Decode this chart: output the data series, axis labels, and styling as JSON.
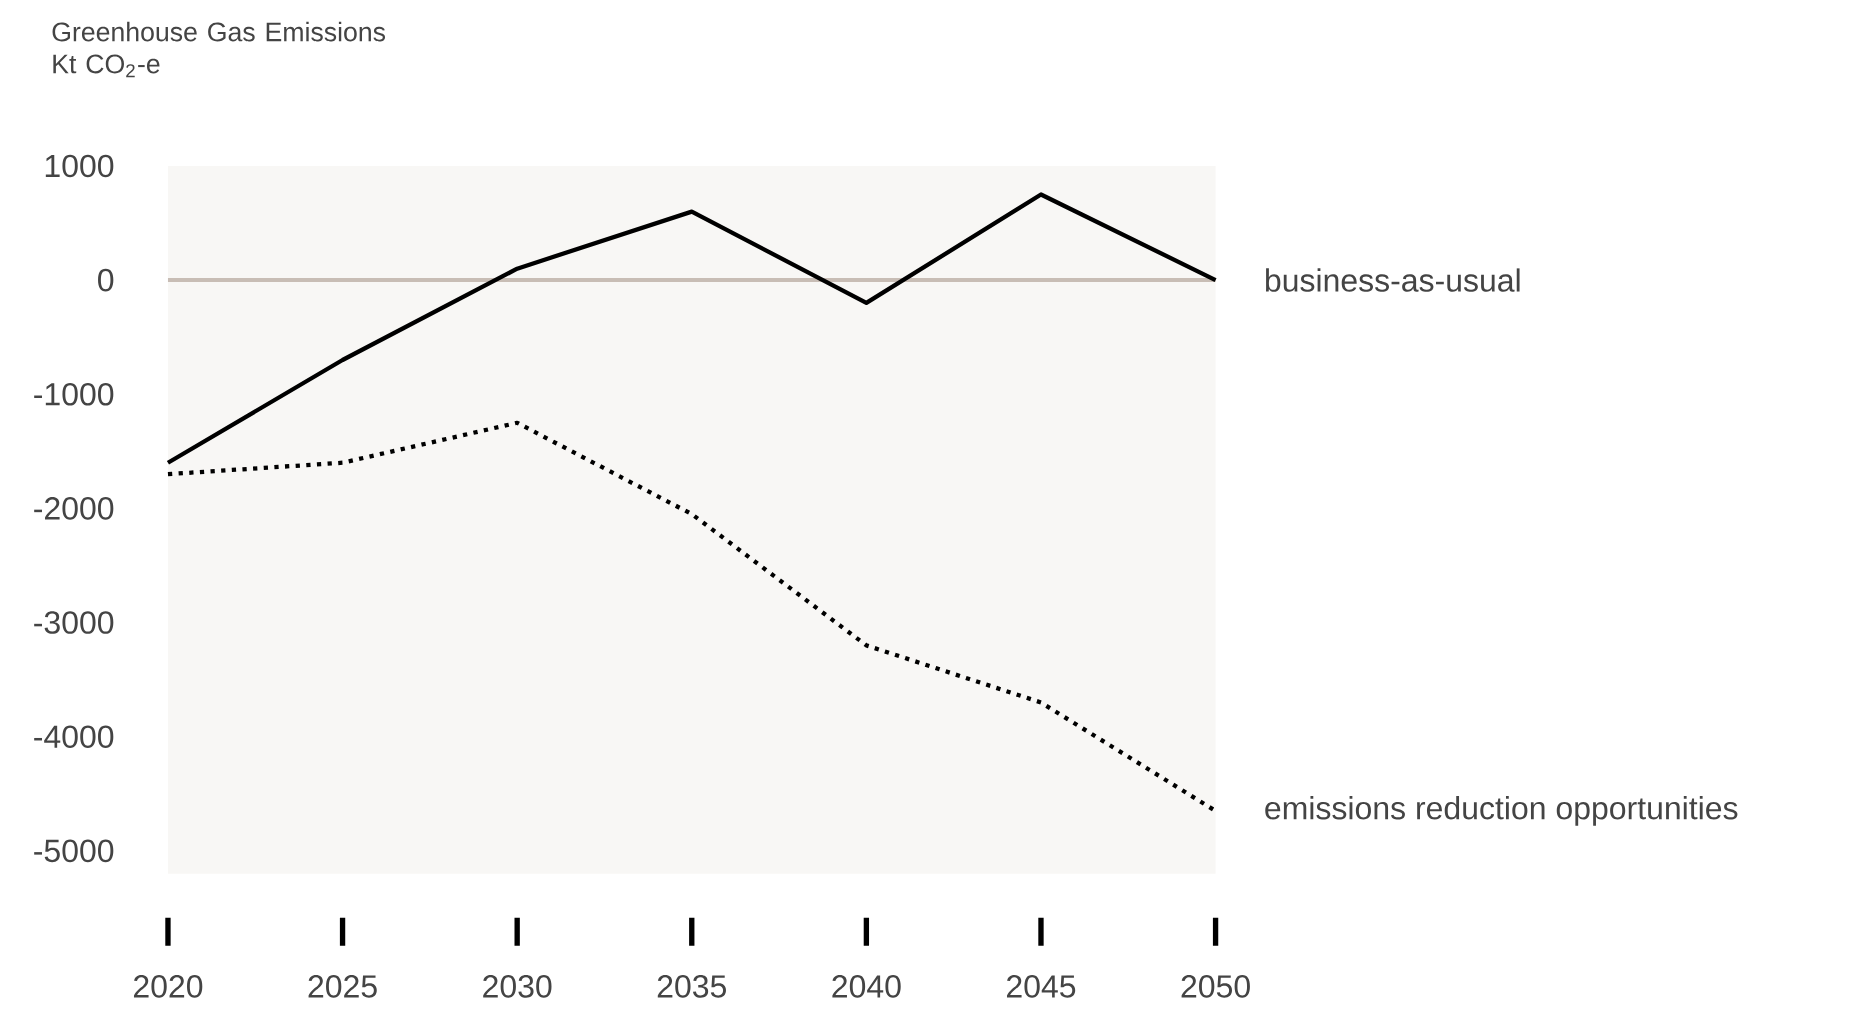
{
  "chart_data": {
    "type": "line",
    "ylabel": "Greenhouse Gas Emissions Kt CO$_{2}$-e",
    "x": [
      2020,
      2025,
      2030,
      2035,
      2040,
      2045,
      2050
    ],
    "series": [
      {
        "name": "business-as-usual",
        "color": "#000000",
        "line_style": "solid",
        "values": [
          -1600,
          -700,
          100,
          600,
          -200,
          750,
          0
        ]
      },
      {
        "name": "emissions reduction opportunities",
        "color": "#000000",
        "line_style": "dotted",
        "values": [
          -1700,
          -1600,
          -1250,
          -2050,
          -3200,
          -3700,
          -4650
        ]
      }
    ],
    "xlim": [
      2020,
      2050
    ],
    "ylim": [
      -5200,
      1000
    ],
    "xticks": [
      2020,
      2025,
      2030,
      2035,
      2040,
      2045,
      2050
    ],
    "yticks": [
      -5000,
      -4000,
      -3000,
      -2000,
      -1000,
      0,
      1000
    ],
    "ref_lines": [
      {
        "axis": "y",
        "value": 0,
        "color": "#c8bdb5"
      }
    ],
    "legend": false
  }
}
